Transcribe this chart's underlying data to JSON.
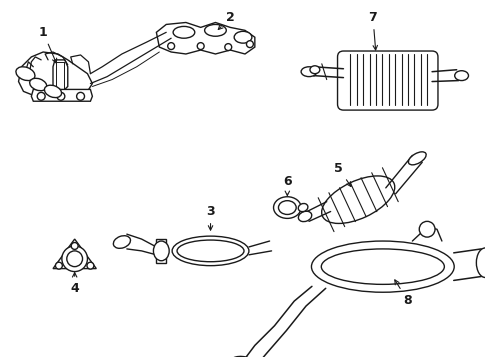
{
  "background_color": "#ffffff",
  "line_color": "#1a1a1a",
  "line_width": 1.0,
  "figsize": [
    4.89,
    3.6
  ],
  "dpi": 100
}
